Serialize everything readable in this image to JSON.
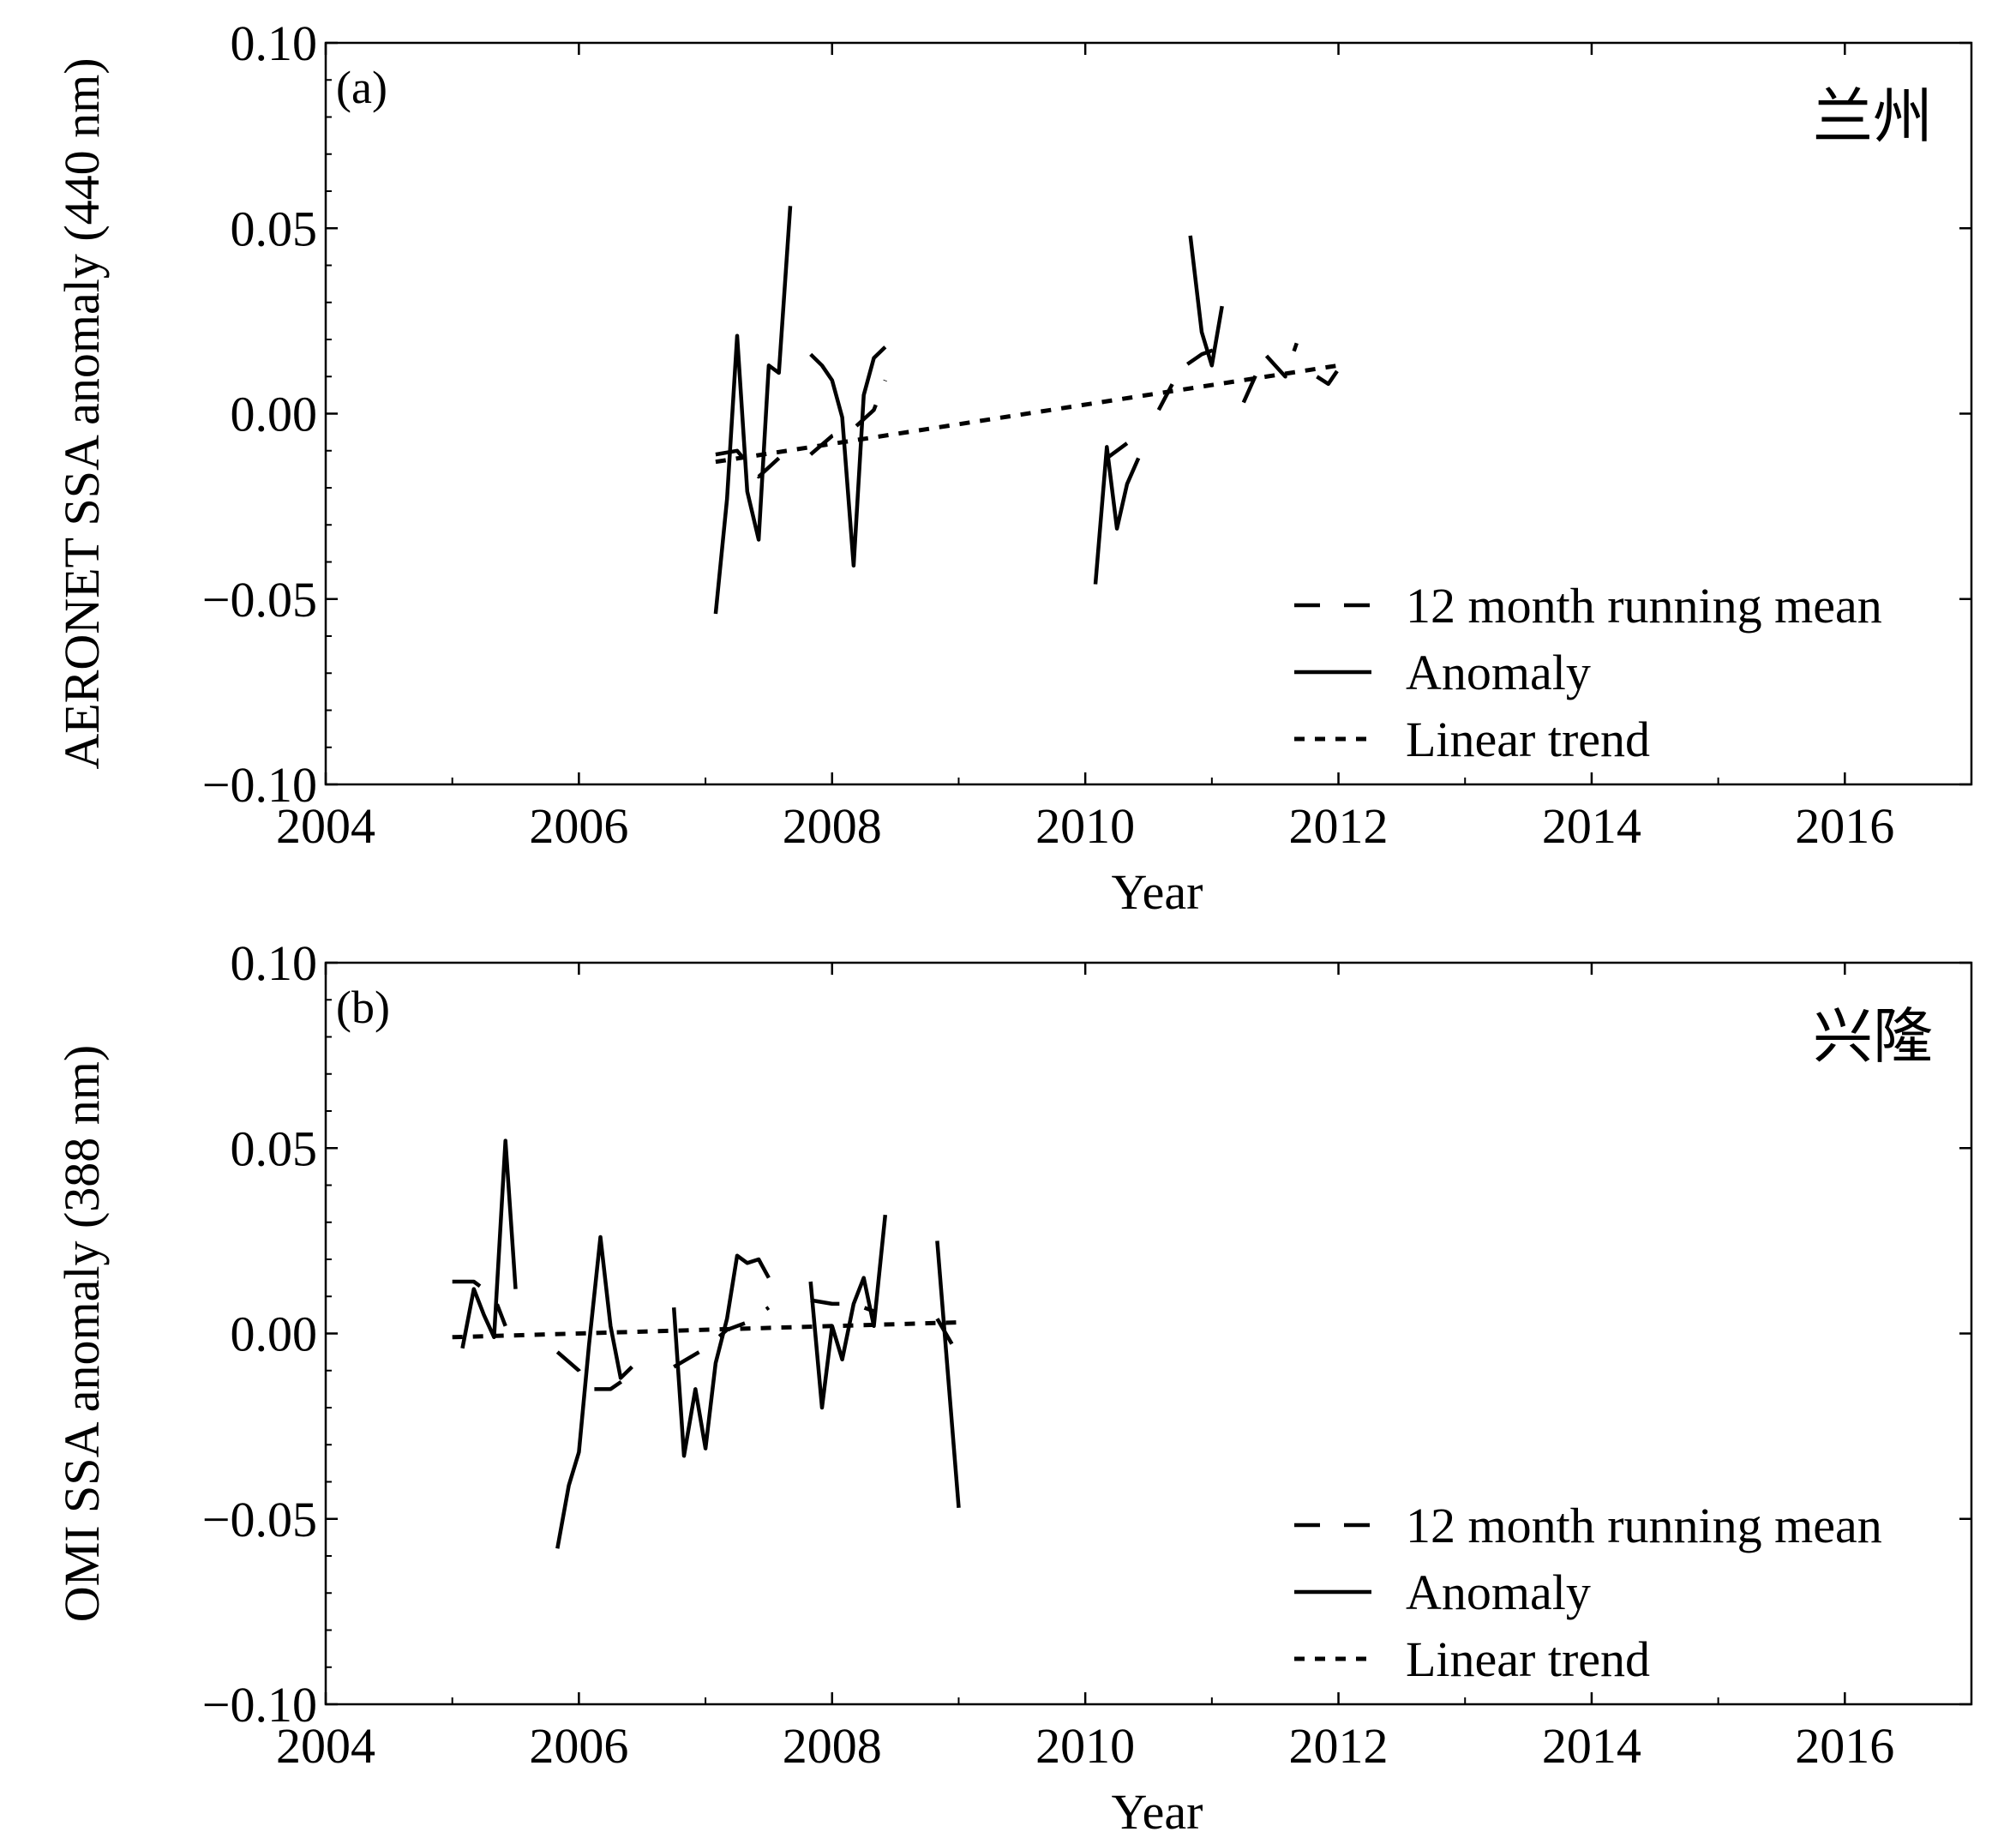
{
  "chart_data": [
    {
      "type": "line",
      "panel_label": "(a)",
      "station": "兰州",
      "xlabel": "Year",
      "ylabel": "AERONET SSA anomaly (440 nm)",
      "xlim": [
        2004,
        2017
      ],
      "ylim": [
        -0.1,
        0.1
      ],
      "x_ticks": [
        2004,
        2006,
        2008,
        2010,
        2012,
        2014,
        2016
      ],
      "x_tick_labels": [
        "2004",
        "2006",
        "2008",
        "2010",
        "2012",
        "2014",
        "2016"
      ],
      "y_ticks": [
        0.1,
        0.05,
        0.0,
        -0.05,
        -0.1
      ],
      "y_tick_labels": [
        "0.10",
        "0.05",
        "0.00",
        "−0.05",
        "−0.10"
      ],
      "grid": false,
      "legend_position": "bottom-right",
      "legend": [
        "12 month running mean",
        "Anomaly",
        "Linear trend"
      ],
      "series": [
        {
          "name": "Anomaly",
          "style": "solid",
          "segments": [
            [
              [
                2007.08,
                -0.054
              ],
              [
                2007.17,
                -0.023
              ],
              [
                2007.25,
                0.021
              ],
              [
                2007.33,
                -0.021
              ],
              [
                2007.42,
                -0.034
              ],
              [
                2007.5,
                0.013
              ],
              [
                2007.58,
                0.011
              ],
              [
                2007.67,
                0.056
              ]
            ],
            [
              [
                2007.83,
                0.016
              ],
              [
                2007.92,
                0.013
              ],
              [
                2008.0,
                0.009
              ],
              [
                2008.08,
                -0.001
              ],
              [
                2008.17,
                -0.041
              ],
              [
                2008.25,
                0.005
              ],
              [
                2008.33,
                0.015
              ],
              [
                2008.42,
                0.018
              ]
            ],
            [
              [
                2010.08,
                -0.046
              ],
              [
                2010.17,
                -0.009
              ],
              [
                2010.25,
                -0.031
              ],
              [
                2010.33,
                -0.019
              ],
              [
                2010.42,
                -0.012
              ]
            ],
            [
              [
                2010.83,
                0.048
              ],
              [
                2010.92,
                0.022
              ],
              [
                2011.0,
                0.013
              ],
              [
                2011.08,
                0.029
              ]
            ]
          ]
        },
        {
          "name": "12 month running mean",
          "style": "dashed",
          "segments": [
            [
              [
                2007.08,
                -0.011
              ],
              [
                2007.25,
                -0.01
              ],
              [
                2007.42,
                -0.017
              ],
              [
                2007.58,
                -0.012
              ]
            ],
            [
              [
                2007.83,
                -0.011
              ],
              [
                2008.0,
                -0.006
              ],
              [
                2008.17,
                -0.004
              ],
              [
                2008.33,
                0.001
              ],
              [
                2008.42,
                0.009
              ]
            ],
            [
              [
                2010.17,
                -0.012
              ],
              [
                2010.33,
                -0.008
              ]
            ],
            [
              [
                2010.58,
                0.001
              ],
              [
                2010.75,
                0.012
              ],
              [
                2010.92,
                0.016
              ],
              [
                2011.08,
                0.018
              ]
            ],
            [
              [
                2011.25,
                0.003
              ],
              [
                2011.42,
                0.016
              ],
              [
                2011.58,
                0.01
              ],
              [
                2011.67,
                0.019
              ]
            ],
            [
              [
                2011.83,
                0.01
              ],
              [
                2011.92,
                0.008
              ],
              [
                2012.0,
                0.012
              ]
            ]
          ]
        },
        {
          "name": "Linear trend",
          "style": "dotted",
          "segments": [
            [
              [
                2007.08,
                -0.013
              ],
              [
                2012.0,
                0.013
              ]
            ]
          ]
        }
      ]
    },
    {
      "type": "line",
      "panel_label": "(b)",
      "station": "兴隆",
      "xlabel": "Year",
      "ylabel": "OMI SSA anomaly (388 nm)",
      "xlim": [
        2004,
        2017
      ],
      "ylim": [
        -0.1,
        0.1
      ],
      "x_ticks": [
        2004,
        2006,
        2008,
        2010,
        2012,
        2014,
        2016
      ],
      "x_tick_labels": [
        "2004",
        "2006",
        "2008",
        "2010",
        "2012",
        "2014",
        "2016"
      ],
      "y_ticks": [
        0.1,
        0.05,
        0.0,
        -0.05,
        -0.1
      ],
      "y_tick_labels": [
        "0.10",
        "0.05",
        "0.00",
        "−0.05",
        "−0.10"
      ],
      "grid": false,
      "legend_position": "bottom-right",
      "legend": [
        "12 month running mean",
        "Anomaly",
        "Linear trend"
      ],
      "series": [
        {
          "name": "Anomaly",
          "style": "solid",
          "segments": [
            [
              [
                2005.08,
                -0.004
              ],
              [
                2005.17,
                0.012
              ],
              [
                2005.25,
                0.005
              ],
              [
                2005.33,
                -0.001
              ],
              [
                2005.42,
                0.052
              ],
              [
                2005.5,
                0.012
              ]
            ],
            [
              [
                2005.83,
                -0.058
              ],
              [
                2005.92,
                -0.041
              ],
              [
                2006.0,
                -0.032
              ],
              [
                2006.08,
                -0.003
              ],
              [
                2006.17,
                0.026
              ],
              [
                2006.25,
                0.002
              ],
              [
                2006.33,
                -0.012
              ],
              [
                2006.42,
                -0.009
              ]
            ],
            [
              [
                2006.75,
                0.007
              ],
              [
                2006.83,
                -0.033
              ],
              [
                2006.92,
                -0.015
              ],
              [
                2007.0,
                -0.031
              ],
              [
                2007.08,
                -0.008
              ],
              [
                2007.17,
                0.004
              ],
              [
                2007.25,
                0.021
              ],
              [
                2007.33,
                0.019
              ],
              [
                2007.42,
                0.02
              ],
              [
                2007.5,
                0.015
              ]
            ],
            [
              [
                2007.83,
                0.014
              ],
              [
                2007.92,
                -0.02
              ],
              [
                2008.0,
                0.002
              ],
              [
                2008.08,
                -0.007
              ],
              [
                2008.17,
                0.008
              ],
              [
                2008.25,
                0.015
              ],
              [
                2008.33,
                0.002
              ],
              [
                2008.42,
                0.032
              ]
            ],
            [
              [
                2008.83,
                0.025
              ],
              [
                2009.0,
                -0.047
              ]
            ]
          ]
        },
        {
          "name": "12 month running mean",
          "style": "dashed",
          "segments": [
            [
              [
                2005.0,
                0.014
              ],
              [
                2005.17,
                0.014
              ],
              [
                2005.33,
                0.01
              ],
              [
                2005.42,
                0.002
              ]
            ],
            [
              [
                2005.83,
                -0.005
              ],
              [
                2006.0,
                -0.01
              ],
              [
                2006.08,
                -0.015
              ],
              [
                2006.25,
                -0.015
              ],
              [
                2006.42,
                -0.011
              ]
            ],
            [
              [
                2006.75,
                -0.009
              ],
              [
                2007.0,
                -0.004
              ],
              [
                2007.17,
                0.001
              ],
              [
                2007.33,
                0.003
              ],
              [
                2007.5,
                0.007
              ]
            ],
            [
              [
                2007.83,
                0.009
              ],
              [
                2008.0,
                0.008
              ],
              [
                2008.17,
                0.008
              ],
              [
                2008.33,
                0.006
              ]
            ],
            [
              [
                2008.83,
                0.004
              ],
              [
                2009.0,
                -0.006
              ]
            ]
          ]
        },
        {
          "name": "Linear trend",
          "style": "dotted",
          "segments": [
            [
              [
                2005.0,
                -0.001
              ],
              [
                2009.0,
                0.003
              ]
            ]
          ]
        }
      ]
    }
  ]
}
